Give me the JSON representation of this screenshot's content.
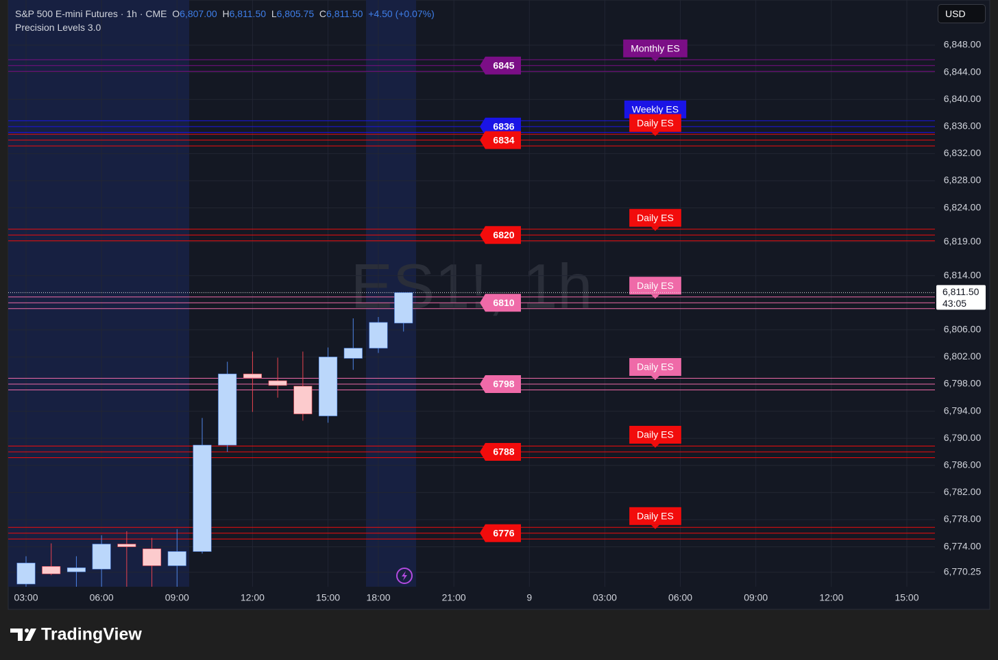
{
  "chart_data": {
    "type": "candlestick",
    "title": "S&P 500 E-mini Futures · 1h · CME",
    "ohlc_header": {
      "open_key": "O",
      "open": "6,807.00",
      "high_key": "H",
      "high": "6,811.50",
      "low_key": "L",
      "low": "6,805.75",
      "close_key": "C",
      "close": "6,811.50",
      "change": "+4.50 (+0.07%)"
    },
    "indicator": "Precision Levels 3.0",
    "watermark": "ES1!, 1h",
    "currency": "USD",
    "last_price_label": "6,811.50",
    "countdown": "43:05",
    "categories": [
      "03:00",
      null,
      null,
      "06:00",
      null,
      null,
      "09:00",
      null,
      null,
      "12:00",
      null,
      null,
      "15:00",
      null,
      "18:00",
      null,
      null,
      "21:00",
      null,
      null,
      "9",
      null,
      null,
      "03:00",
      null,
      null,
      "06:00",
      null,
      null,
      "09:00",
      null,
      null,
      "12:00",
      null,
      null,
      "15:00"
    ],
    "series": [
      {
        "open": [
          6768.5,
          6771.1,
          6770.3,
          6770.7,
          6774.4,
          6773.7,
          6771.2,
          6773.3,
          6789.0,
          6799.5,
          6798.5,
          6797.7,
          6793.3,
          6801.8,
          6803.3,
          6807.0,
          null,
          null,
          null,
          null,
          null,
          null,
          null,
          null,
          null,
          null,
          null,
          null,
          null,
          null,
          null,
          null,
          null,
          null,
          null,
          null
        ],
        "high": [
          6772.6,
          6774.5,
          6772.6,
          6775.7,
          6776.3,
          6775.3,
          6776.6,
          6793.0,
          6801.3,
          6802.8,
          6801.9,
          6802.8,
          6803.4,
          6807.7,
          6807.9,
          6811.5,
          null,
          null,
          null,
          null,
          null,
          null,
          null,
          null,
          null,
          null,
          null,
          null,
          null,
          null,
          null,
          null,
          null,
          null,
          null,
          null
        ],
        "low": [
          6767.5,
          6769.8,
          6767.8,
          6767.8,
          6767.8,
          6767.8,
          6767.8,
          6773.0,
          6788.0,
          6793.9,
          6796.0,
          6792.6,
          6792.3,
          6800.1,
          6802.6,
          6805.75,
          null,
          null,
          null,
          null,
          null,
          null,
          null,
          null,
          null,
          null,
          null,
          null,
          null,
          null,
          null,
          null,
          null,
          null,
          null,
          null
        ],
        "close": [
          6771.6,
          6770.0,
          6770.9,
          6774.4,
          6774.0,
          6771.2,
          6773.3,
          6789.0,
          6799.5,
          6798.9,
          6797.8,
          6793.6,
          6802.0,
          6803.3,
          6807.1,
          6811.5,
          null,
          null,
          null,
          null,
          null,
          null,
          null,
          null,
          null,
          null,
          null,
          null,
          null,
          null,
          null,
          null,
          null,
          null,
          null,
          null
        ]
      }
    ],
    "up_color": "#bbd7fb",
    "down_color": "#fccbcd",
    "up_wick": "#4f86e8",
    "down_wick": "#e8434f",
    "ylim": [
      6768.1,
      6854.67
    ],
    "yticks": [
      {
        "value": 6848,
        "label": "6,848.00"
      },
      {
        "value": 6844,
        "label": "6,844.00"
      },
      {
        "value": 6840,
        "label": "6,840.00"
      },
      {
        "value": 6836,
        "label": "6,836.00"
      },
      {
        "value": 6832,
        "label": "6,832.00"
      },
      {
        "value": 6828,
        "label": "6,828.00"
      },
      {
        "value": 6824,
        "label": "6,824.00"
      },
      {
        "value": 6819,
        "label": "6,819.00"
      },
      {
        "value": 6814,
        "label": "6,814.00"
      },
      {
        "value": 6806,
        "label": "6,806.00"
      },
      {
        "value": 6802,
        "label": "6,802.00"
      },
      {
        "value": 6798,
        "label": "6,798.00"
      },
      {
        "value": 6794,
        "label": "6,794.00"
      },
      {
        "value": 6790,
        "label": "6,790.00"
      },
      {
        "value": 6786,
        "label": "6,786.00"
      },
      {
        "value": 6782,
        "label": "6,782.00"
      },
      {
        "value": 6778,
        "label": "6,778.00"
      },
      {
        "value": 6774,
        "label": "6,774.00"
      },
      {
        "value": 6770.25,
        "label": "6,770.25"
      }
    ],
    "grid": true,
    "levels": [
      {
        "value": 6845,
        "tag": "Monthly ES",
        "color": "#7b0e86"
      },
      {
        "value": 6836,
        "tag": "Weekly ES",
        "color": "#1a14e6"
      },
      {
        "value": 6834,
        "tag": "Daily ES",
        "color": "#f20c0c"
      },
      {
        "value": 6820,
        "tag": "Daily ES",
        "color": "#f20c0c"
      },
      {
        "value": 6810,
        "tag": "Daily ES",
        "color": "#ef6aa8"
      },
      {
        "value": 6798,
        "tag": "Daily ES",
        "color": "#ef6aa8"
      },
      {
        "value": 6788,
        "tag": "Daily ES",
        "color": "#f20c0c"
      },
      {
        "value": 6776,
        "tag": "Daily ES",
        "color": "#f20c0c"
      }
    ]
  },
  "branding": "TradingView"
}
